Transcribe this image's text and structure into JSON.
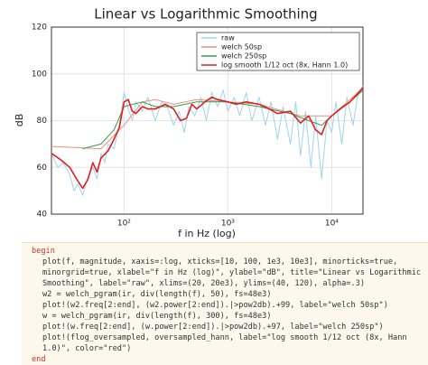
{
  "chart_data": {
    "type": "line",
    "title": "Linear vs Logarithmic Smoothing",
    "xlabel": "f in Hz (log)",
    "ylabel": "dB",
    "xscale": "log",
    "grid": true,
    "legend": "top-right",
    "xlim": [
      20,
      20000
    ],
    "ylim": [
      40,
      120
    ],
    "xticks": [
      {
        "value": 100,
        "label": "10²"
      },
      {
        "value": 1000,
        "label": "10³"
      },
      {
        "value": 10000,
        "label": "10⁴"
      }
    ],
    "yticks": [
      40,
      60,
      80,
      100,
      120
    ],
    "series": [
      {
        "name": "raw",
        "color": "#9fd3ef",
        "x": [
          20,
          23,
          26,
          30,
          33,
          36,
          40,
          45,
          50,
          55,
          60,
          65,
          70,
          80,
          90,
          100,
          110,
          120,
          130,
          150,
          170,
          200,
          230,
          260,
          300,
          340,
          380,
          420,
          480,
          550,
          620,
          700,
          800,
          900,
          1000,
          1150,
          1300,
          1500,
          1700,
          2000,
          2300,
          2600,
          3000,
          3400,
          4000,
          4500,
          5000,
          5600,
          6300,
          7000,
          8000,
          9000,
          10000,
          11000,
          12500,
          14000,
          16000,
          18000,
          20000
        ],
        "values": [
          66,
          60,
          62,
          57,
          50,
          53,
          48,
          56,
          60,
          55,
          66,
          62,
          70,
          68,
          78,
          92,
          85,
          80,
          88,
          84,
          90,
          80,
          88,
          86,
          78,
          84,
          75,
          86,
          82,
          90,
          80,
          92,
          86,
          93,
          84,
          90,
          82,
          92,
          80,
          90,
          78,
          88,
          72,
          86,
          70,
          88,
          65,
          84,
          60,
          82,
          55,
          80,
          75,
          88,
          70,
          90,
          78,
          92,
          95
        ]
      },
      {
        "name": "welch 50sp",
        "color": "#e8927c",
        "x": [
          20,
          60,
          100,
          150,
          200,
          300,
          500,
          1000,
          2000,
          5000,
          10000,
          20000
        ],
        "values": [
          69,
          68,
          78,
          88,
          89,
          87,
          89,
          88,
          87,
          82,
          82,
          94
        ]
      },
      {
        "name": "welch 250sp",
        "color": "#3a9a4a",
        "x": [
          40,
          60,
          80,
          100,
          150,
          200,
          300,
          500,
          1000,
          2000,
          4000,
          6000,
          8000,
          10000,
          15000,
          20000
        ],
        "values": [
          68,
          70,
          76,
          86,
          88,
          86,
          86,
          88,
          88,
          86,
          83,
          80,
          78,
          82,
          88,
          93
        ]
      },
      {
        "name": "log smooth 1/12 oct (8x, Hann 1.0)",
        "color": "#e02020",
        "x": [
          20,
          25,
          30,
          35,
          40,
          45,
          50,
          55,
          60,
          70,
          80,
          90,
          100,
          110,
          120,
          130,
          150,
          170,
          200,
          250,
          300,
          350,
          400,
          450,
          500,
          600,
          700,
          800,
          1000,
          1200,
          1500,
          2000,
          2500,
          3000,
          4000,
          5000,
          6000,
          7000,
          8000,
          9000,
          10000,
          12000,
          15000,
          20000
        ],
        "values": [
          66,
          63,
          60,
          55,
          51,
          55,
          62,
          58,
          64,
          67,
          72,
          77,
          88,
          89,
          84,
          83,
          86,
          85,
          85,
          87,
          85,
          80,
          81,
          87,
          85,
          88,
          90,
          89,
          88,
          87,
          88,
          87,
          85,
          83,
          84,
          79,
          82,
          76,
          74,
          80,
          82,
          85,
          88,
          94
        ]
      }
    ]
  },
  "code": {
    "lines": [
      "begin",
      "plot(f, magnitude, xaxis=:log, xticks=[10, 100, 1e3, 10e3], minorticks=true,",
      "minorgrid=true, xlabel=\"f in Hz (log)\", ylabel=\"dB\", title=\"Linear vs Logarithmic",
      "Smoothing\", label=\"raw\", xlims=(20, 20e3), ylims=(40, 120), alpha=.3)",
      "w2 = welch_pgram(ir, div(length(f), 50), fs=48e3)",
      "plot!(w2.freq[2:end], (w2.power[2:end]).|>pow2db).+99, label=\"welch 50sp\")",
      "w = welch_pgram(ir, div(length(f), 300), fs=48e3)",
      "plot!(w.freq[2:end], (w.power[2:end]).|>pow2db).+97, label=\"welch 250sp\")",
      "plot!(flog_oversampled, oversampled_hann, label=\"log smooth 1/12 oct (8x, Hann",
      "1.0)\", color=\"red\")",
      "end"
    ]
  }
}
